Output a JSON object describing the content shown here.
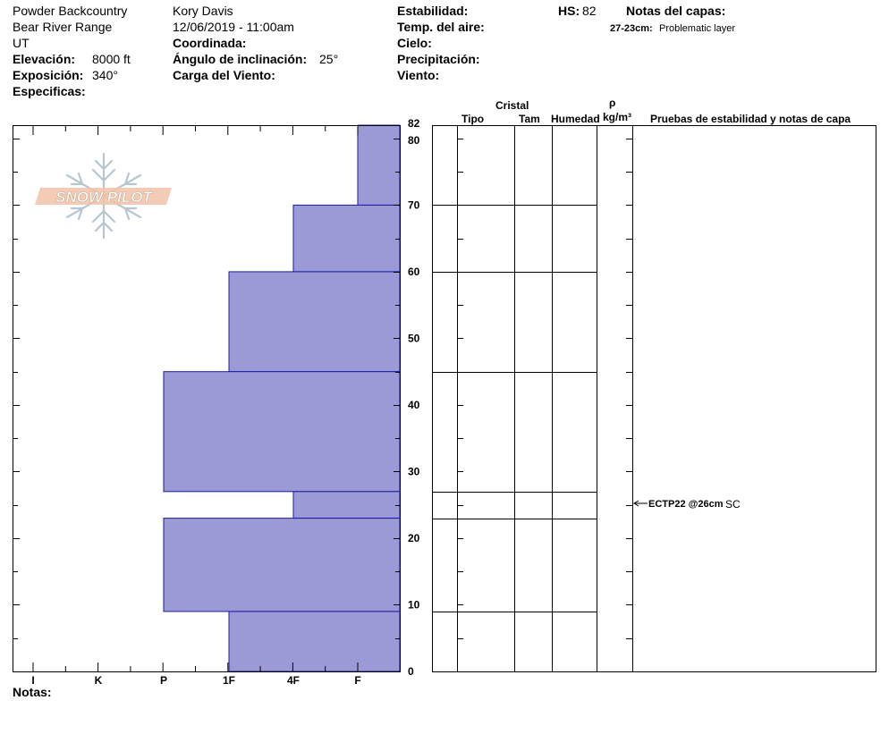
{
  "header": {
    "location": "Powder Backcountry",
    "range": "Bear River Range",
    "state": "UT",
    "elevation_label": "Elevación:",
    "elevation_value": "8000 ft",
    "aspect_label": "Exposición:",
    "aspect_value": "340°",
    "specifics_label": "Especificas:",
    "observer": "Kory Davis",
    "datetime": "12/06/2019 - 11:00am",
    "coord_label": "Coordinada:",
    "slope_label": "Ángulo de inclinación:",
    "slope_value": "25°",
    "wind_load_label": "Carga del Viento:",
    "stability_label": "Estabilidad:",
    "air_temp_label": "Temp. del aire:",
    "sky_label": "Cielo:",
    "precip_label": "Precipitación:",
    "wind_label": "Viento:",
    "hs_label": "HS:",
    "hs_value": "82",
    "layer_notes_label": "Notas del capas:",
    "layer_note_range": "27-23cm:",
    "layer_note_text": "Problematic layer"
  },
  "logo": {
    "text": "SNOW PILOT"
  },
  "columns": {
    "crystal": "Cristal",
    "type": "Tipo",
    "size": "Tam",
    "moisture": "Humedad",
    "rho": "ρ",
    "density_unit": "kg/m³",
    "tests": "Pruebas de estabilidad y notas de capa"
  },
  "test_result": {
    "code": "ECTP22 @26cm",
    "quality": "SC"
  },
  "footer": {
    "notes_label": "Notas:"
  },
  "chart_data": {
    "type": "bar",
    "orientation": "horizontal-profile",
    "title": "",
    "xlabel": "",
    "ylabel": "",
    "x_categories": [
      "I",
      "K",
      "P",
      "1F",
      "4F",
      "F"
    ],
    "ylim": [
      0,
      82
    ],
    "yticks": [
      0,
      10,
      20,
      30,
      40,
      50,
      60,
      70,
      80,
      82
    ],
    "layers": [
      {
        "bottom": 70,
        "top": 82,
        "hardness": "F"
      },
      {
        "bottom": 60,
        "top": 70,
        "hardness": "4F"
      },
      {
        "bottom": 45,
        "top": 60,
        "hardness": "1F"
      },
      {
        "bottom": 27,
        "top": 45,
        "hardness": "P"
      },
      {
        "bottom": 23,
        "top": 27,
        "hardness": "4F"
      },
      {
        "bottom": 9,
        "top": 23,
        "hardness": "P"
      },
      {
        "bottom": 0,
        "top": 9,
        "hardness": "1F"
      }
    ],
    "layer_boundaries": [
      82,
      70,
      60,
      45,
      27,
      23,
      9
    ],
    "bar_color": "#9c9ad6",
    "bar_edge_color": "#1a1aa0"
  }
}
